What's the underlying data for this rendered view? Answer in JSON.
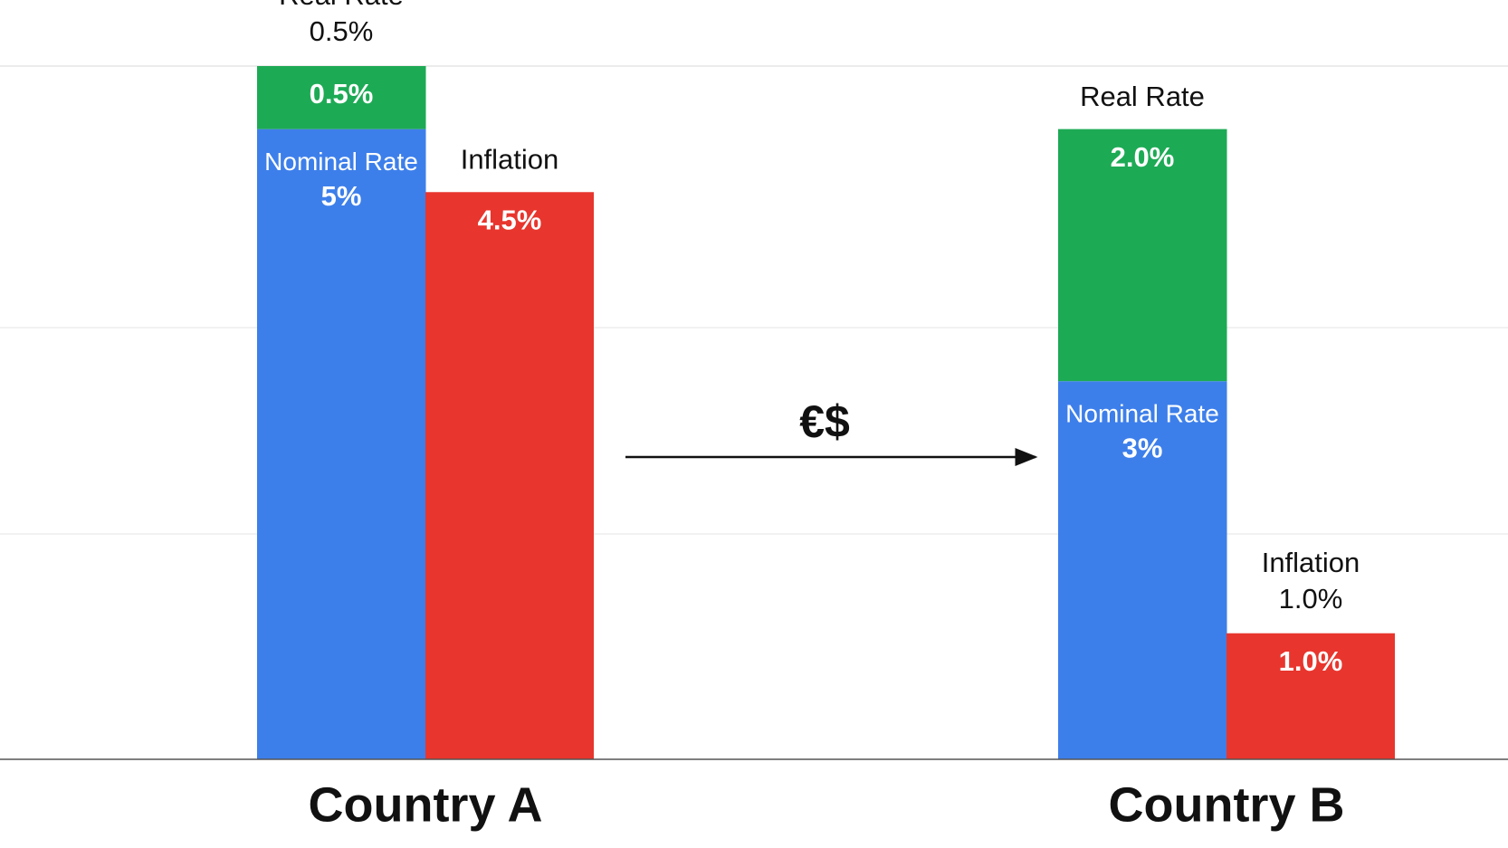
{
  "chart_data": {
    "type": "bar",
    "stacked": true,
    "categories": [
      "Country A",
      "Country B"
    ],
    "series": [
      {
        "name": "Nominal Rate",
        "color": "#3d7fea",
        "stack": "rate",
        "values": [
          5,
          3
        ],
        "value_labels": [
          "5%",
          "3%"
        ]
      },
      {
        "name": "Real Rate",
        "color": "#1daa55",
        "stack": "rate",
        "values": [
          0.5,
          2.0
        ],
        "value_labels": [
          "0.5%",
          "2.0%"
        ]
      },
      {
        "name": "Inflation",
        "color": "#e8352d",
        "stack": "inflation",
        "values": [
          4.5,
          1.0
        ],
        "value_labels": [
          "4.5%",
          "1.0%"
        ]
      }
    ],
    "ylim": [
      0,
      5.5
    ],
    "annotation": "€$"
  }
}
